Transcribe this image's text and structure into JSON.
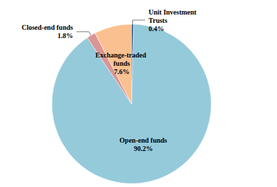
{
  "chart_data": {
    "type": "pie",
    "categories": [
      "Unit Investment Trusts",
      "Open-end funds",
      "Closed-end funds",
      "Exchange-traded funds"
    ],
    "values": [
      0.4,
      90.2,
      1.8,
      7.6
    ],
    "value_labels": [
      "0.4%",
      "90.2%",
      "1.8%",
      "7.6%"
    ],
    "colors": [
      "#1f497d",
      "#95cadb",
      "#d99694",
      "#fac090"
    ],
    "data_labels": true
  }
}
